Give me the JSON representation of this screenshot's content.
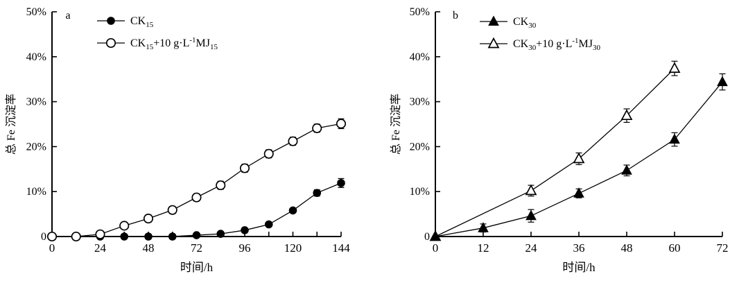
{
  "figure": {
    "background": "#ffffff",
    "ink_color": "#000000"
  },
  "chart_data": [
    {
      "type": "line",
      "panel_label": "a",
      "xlabel": "时间/h",
      "ylabel": "总 Fe 沉淀率",
      "xlim": [
        0,
        144
      ],
      "ylim": [
        0,
        50
      ],
      "xtick_minor_step": 12,
      "xticks": [
        {
          "value": 0,
          "label": "0"
        },
        {
          "value": 24,
          "label": "24"
        },
        {
          "value": 48,
          "label": "48"
        },
        {
          "value": 72,
          "label": "72"
        },
        {
          "value": 96,
          "label": "96"
        },
        {
          "value": 120,
          "label": "120"
        },
        {
          "value": 144,
          "label": "144"
        }
      ],
      "yticks": [
        {
          "value": 0,
          "label": "0"
        },
        {
          "value": 10,
          "label": "10%"
        },
        {
          "value": 20,
          "label": "20%"
        },
        {
          "value": 30,
          "label": "30%"
        },
        {
          "value": 40,
          "label": "40%"
        },
        {
          "value": 50,
          "label": "50%"
        }
      ],
      "grid": false,
      "legend_position": "top-left-inside",
      "z_reverse": false,
      "series": [
        {
          "name": "CK₁₅",
          "label_parts": [
            {
              "t": "CK"
            },
            {
              "sub": "15"
            }
          ],
          "marker": "circle-filled",
          "x": [
            0,
            12,
            24,
            36,
            48,
            60,
            72,
            84,
            96,
            108,
            120,
            132,
            144
          ],
          "y": [
            0,
            0,
            0,
            0,
            0,
            0,
            0.3,
            0.6,
            1.4,
            2.7,
            5.8,
            9.7,
            11.9
          ],
          "yerr": [
            0,
            0,
            0,
            0,
            0,
            0,
            0.3,
            0.3,
            0.4,
            0.4,
            0.5,
            0.7,
            1.0
          ]
        },
        {
          "name": "CK₁₅+10 g·L⁻¹MJ₁₅",
          "label_parts": [
            {
              "t": "CK"
            },
            {
              "sub": "15"
            },
            {
              "t": "+10 g·L"
            },
            {
              "sup": "-1"
            },
            {
              "t": "MJ"
            },
            {
              "sub": "15"
            }
          ],
          "marker": "circle-open",
          "x": [
            0,
            12,
            24,
            36,
            48,
            60,
            72,
            84,
            96,
            108,
            120,
            132,
            144
          ],
          "y": [
            0,
            0,
            0.5,
            2.4,
            4.0,
            5.9,
            8.7,
            11.4,
            15.2,
            18.4,
            21.2,
            24.1,
            25.1
          ],
          "yerr": [
            0.4,
            0.4,
            0.6,
            0.7,
            0.8,
            0.8,
            0.8,
            0.9,
            0.9,
            0.9,
            0.9,
            0.9,
            1.1
          ]
        }
      ]
    },
    {
      "type": "line",
      "panel_label": "b",
      "xlabel": "时间/h",
      "ylabel": "总 Fe 沉淀率",
      "xlim": [
        0,
        72
      ],
      "ylim": [
        0,
        50
      ],
      "xtick_minor_step": 12,
      "xticks": [
        {
          "value": 0,
          "label": "0"
        },
        {
          "value": 12,
          "label": "12"
        },
        {
          "value": 24,
          "label": "24"
        },
        {
          "value": 36,
          "label": "36"
        },
        {
          "value": 48,
          "label": "48"
        },
        {
          "value": 60,
          "label": "60"
        },
        {
          "value": 72,
          "label": "72"
        }
      ],
      "yticks": [
        {
          "value": 0,
          "label": "0"
        },
        {
          "value": 10,
          "label": "10%"
        },
        {
          "value": 20,
          "label": "20%"
        },
        {
          "value": 30,
          "label": "30%"
        },
        {
          "value": 40,
          "label": "40%"
        },
        {
          "value": 50,
          "label": "50%"
        }
      ],
      "grid": false,
      "legend_position": "top-left-inside",
      "z_reverse": true,
      "series": [
        {
          "name": "CK₃₀",
          "label_parts": [
            {
              "t": "CK"
            },
            {
              "sub": "30"
            }
          ],
          "marker": "triangle-filled",
          "x": [
            0,
            12,
            24,
            36,
            48,
            60,
            72
          ],
          "y": [
            0,
            1.9,
            4.6,
            9.6,
            14.7,
            21.6,
            34.4
          ],
          "yerr": [
            0,
            0.9,
            1.4,
            1.0,
            1.2,
            1.5,
            1.8
          ]
        },
        {
          "name": "CK₃₀+10 g·L⁻¹MJ₃₀",
          "label_parts": [
            {
              "t": "CK"
            },
            {
              "sub": "30"
            },
            {
              "t": "+10 g·L"
            },
            {
              "sup": "-1"
            },
            {
              "t": "MJ"
            },
            {
              "sub": "30"
            }
          ],
          "marker": "triangle-open",
          "x": [
            0,
            24,
            36,
            48,
            60
          ],
          "y": [
            0,
            10.2,
            17.3,
            26.9,
            37.4
          ],
          "yerr": [
            0,
            1.2,
            1.3,
            1.5,
            1.6
          ]
        }
      ]
    }
  ]
}
